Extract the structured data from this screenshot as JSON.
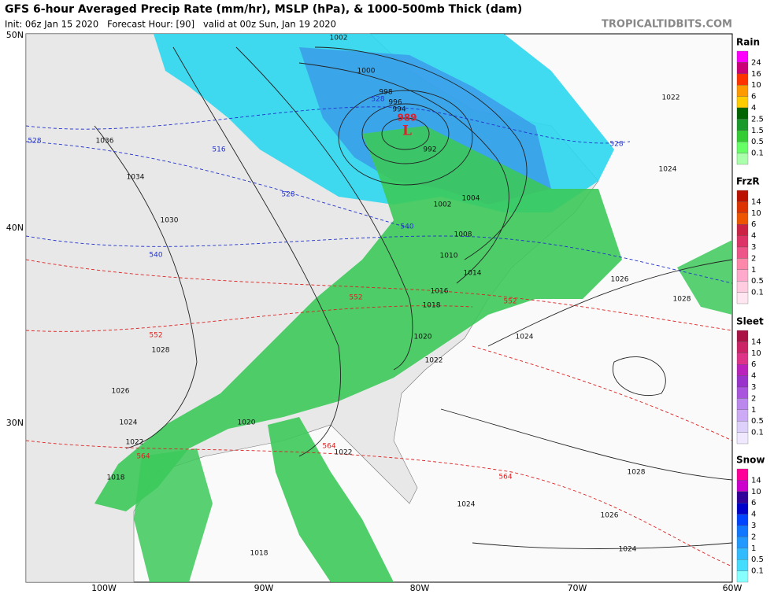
{
  "header": {
    "title": "GFS 6-hour Averaged Precip Rate (mm/hr), MSLP (hPa), & 1000-500mb Thick (dam)",
    "subtitle": "Init: 06z Jan 15 2020   Forecast Hour: [90]   valid at 00z Sun, Jan 19 2020",
    "site": "TROPICALTIDBITS.COM"
  },
  "map": {
    "lat_labels": [
      "50N",
      "40N",
      "30N"
    ],
    "lon_labels": [
      "100W",
      "90W",
      "80W",
      "70W",
      "60W"
    ],
    "low": {
      "symbol": "L",
      "pressure": "989"
    },
    "isobar_labels": [
      "1002",
      "1000",
      "998",
      "996",
      "994",
      "992",
      "1002",
      "1004",
      "1008",
      "1010",
      "1014",
      "1016",
      "1018",
      "1020",
      "1022",
      "1024",
      "1026",
      "1028",
      "1022",
      "1024",
      "1036",
      "1034",
      "1030",
      "1028",
      "1026",
      "1024",
      "1022",
      "1020",
      "1018",
      "1022",
      "1024",
      "1026",
      "1028",
      "1024",
      "1018"
    ],
    "thickness_labels": [
      "528",
      "516",
      "528",
      "528",
      "540",
      "540",
      "528",
      "552",
      "552",
      "552",
      "564",
      "564",
      "564"
    ]
  },
  "legend": [
    {
      "title": "Rain",
      "ticks": [
        "24",
        "16",
        "10",
        "6",
        "4",
        "2.5",
        "1.5",
        "0.5",
        "0.1"
      ]
    },
    {
      "title": "FrzR",
      "ticks": [
        "14",
        "10",
        "6",
        "4",
        "3",
        "2",
        "1",
        "0.5",
        "0.1"
      ]
    },
    {
      "title": "Sleet",
      "ticks": [
        "14",
        "10",
        "6",
        "4",
        "3",
        "2",
        "1",
        "0.5",
        "0.1"
      ]
    },
    {
      "title": "Snow",
      "ticks": [
        "14",
        "10",
        "6",
        "4",
        "3",
        "2",
        "1",
        "0.5",
        "0.1"
      ]
    }
  ]
}
